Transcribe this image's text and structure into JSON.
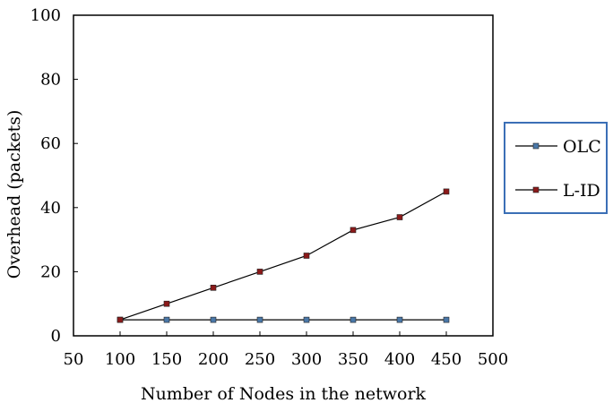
{
  "chart_data": {
    "type": "line",
    "xlabel": "Number of Nodes in the network",
    "ylabel": "Overhead (packets)",
    "xlim": [
      50,
      500
    ],
    "ylim": [
      0,
      100
    ],
    "x_ticks": [
      "50",
      "100",
      "150",
      "200",
      "250",
      "300",
      "350",
      "400",
      "450",
      "500"
    ],
    "y_ticks": [
      "0",
      "20",
      "40",
      "60",
      "80",
      "100"
    ],
    "x": [
      100,
      150,
      200,
      250,
      300,
      350,
      400,
      450
    ],
    "series": [
      {
        "name": "OLC",
        "values": [
          5,
          5,
          5,
          5,
          5,
          5,
          5,
          5
        ],
        "color": "#4a78a8"
      },
      {
        "name": "L-ID",
        "values": [
          5,
          10,
          15,
          20,
          25,
          33,
          37,
          45
        ],
        "color": "#8b1a1a"
      }
    ],
    "grid": false,
    "legend_position": "right",
    "legend_border_color": "#3b6fb6"
  }
}
